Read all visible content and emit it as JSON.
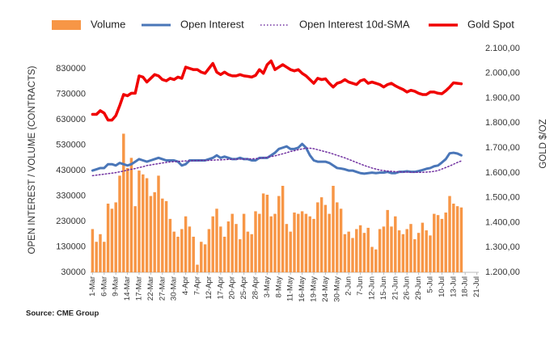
{
  "chart_data": {
    "type": "combo",
    "source": "Source: CME Group",
    "ylabel": "OPEN INTEREST / VOLUME (CONTRACTS)",
    "y2label": "GOLD $/OZ",
    "categories": [
      "1-Mar",
      null,
      null,
      "6-Mar",
      null,
      null,
      "9-Mar",
      null,
      null,
      "14-Mar",
      null,
      null,
      "17-Mar",
      null,
      null,
      "22-Mar",
      null,
      null,
      "27-Mar",
      null,
      null,
      "30-Mar",
      null,
      null,
      "4-Apr",
      null,
      null,
      "7-Apr",
      null,
      null,
      "12-Apr",
      null,
      null,
      "17-Apr",
      null,
      null,
      "20-Apr",
      null,
      null,
      "25-Apr",
      null,
      null,
      "28-Apr",
      null,
      null,
      "3-May",
      null,
      null,
      "8-May",
      null,
      null,
      "11-May",
      null,
      null,
      "16-May",
      null,
      null,
      "19-May",
      null,
      null,
      "24-May",
      null,
      null,
      "30-May",
      null,
      null,
      "2-Jun",
      null,
      null,
      "7-Jun",
      null,
      null,
      "12-Jun",
      null,
      null,
      "15-Jun",
      null,
      null,
      "21-Jun",
      null,
      null,
      "26-Jun",
      null,
      null,
      "29-Jun",
      null,
      null,
      "5-Jul",
      null,
      null,
      "10-Jul",
      null,
      null,
      "13-Jul",
      null,
      null,
      "18-Jul",
      null,
      null,
      "21-Jul"
    ],
    "ylim": [
      30000,
      910000
    ],
    "yticks": [
      30000,
      130000,
      230000,
      330000,
      430000,
      530000,
      630000,
      730000,
      830000
    ],
    "y2lim": [
      1200,
      2100
    ],
    "y2ticks": [
      {
        "value": 1200,
        "label": "1.200,00"
      },
      {
        "value": 1300,
        "label": "1.300,00"
      },
      {
        "value": 1400,
        "label": "1.400,00"
      },
      {
        "value": 1500,
        "label": "1.500,00"
      },
      {
        "value": 1600,
        "label": "1.600,00"
      },
      {
        "value": 1700,
        "label": "1.700,00"
      },
      {
        "value": 1800,
        "label": "1.800,00"
      },
      {
        "value": 1900,
        "label": "1.900,00"
      },
      {
        "value": 2000,
        "label": "2.000,00"
      },
      {
        "value": 2100,
        "label": "2.100,00"
      }
    ],
    "series": [
      {
        "name": "Volume",
        "type": "bar",
        "color": "#f79646",
        "values": [
          200000,
          150000,
          180000,
          150000,
          300000,
          280000,
          305000,
          410000,
          575000,
          440000,
          480000,
          290000,
          430000,
          415000,
          400000,
          330000,
          345000,
          410000,
          320000,
          310000,
          240000,
          190000,
          170000,
          200000,
          250000,
          210000,
          170000,
          60000,
          150000,
          140000,
          200000,
          250000,
          280000,
          210000,
          170000,
          230000,
          260000,
          220000,
          160000,
          260000,
          190000,
          180000,
          270000,
          260000,
          340000,
          335000,
          250000,
          260000,
          330000,
          370000,
          220000,
          190000,
          265000,
          260000,
          270000,
          260000,
          250000,
          240000,
          305000,
          325000,
          295000,
          260000,
          370000,
          305000,
          280000,
          180000,
          190000,
          165000,
          200000,
          215000,
          185000,
          205000,
          130000,
          120000,
          200000,
          210000,
          275000,
          210000,
          250000,
          195000,
          180000,
          200000,
          220000,
          160000,
          185000,
          225000,
          195000,
          175000,
          260000,
          255000,
          240000,
          265000,
          330000,
          300000,
          290000,
          285000,
          null,
          null,
          null,
          null
        ]
      },
      {
        "name": "Open Interest",
        "type": "line",
        "color": "#4a76b8",
        "width": 3,
        "values": [
          430000,
          435000,
          440000,
          440000,
          455000,
          455000,
          450000,
          460000,
          455000,
          450000,
          455000,
          465000,
          475000,
          470000,
          465000,
          470000,
          475000,
          480000,
          475000,
          470000,
          470000,
          470000,
          465000,
          450000,
          455000,
          470000,
          470000,
          470000,
          470000,
          470000,
          475000,
          480000,
          490000,
          480000,
          485000,
          480000,
          475000,
          475000,
          480000,
          475000,
          475000,
          470000,
          470000,
          480000,
          480000,
          480000,
          490000,
          500000,
          515000,
          520000,
          525000,
          515000,
          515000,
          520000,
          535000,
          520000,
          490000,
          470000,
          465000,
          465000,
          465000,
          460000,
          450000,
          440000,
          438000,
          435000,
          430000,
          430000,
          425000,
          420000,
          418000,
          420000,
          422000,
          420000,
          422000,
          422000,
          425000,
          420000,
          420000,
          425000,
          425000,
          427000,
          425000,
          425000,
          428000,
          432000,
          437000,
          440000,
          447000,
          450000,
          462000,
          475000,
          498000,
          500000,
          497000,
          490000,
          null,
          null,
          null,
          null
        ]
      },
      {
        "name": "Open Interest 10d-SMA",
        "type": "line",
        "style": "dotted",
        "color": "#7030a0",
        "width": 1.5,
        "values": [
          410000,
          412000,
          414000,
          416000,
          418000,
          420000,
          422000,
          425000,
          428000,
          432000,
          435000,
          438000,
          442000,
          445000,
          450000,
          452000,
          455000,
          457000,
          460000,
          462000,
          464000,
          465000,
          466000,
          467000,
          468000,
          468000,
          469000,
          469000,
          470000,
          470000,
          470000,
          471000,
          472000,
          472000,
          473000,
          474000,
          474000,
          475000,
          475000,
          475000,
          476000,
          476000,
          477000,
          478000,
          480000,
          482000,
          485000,
          488000,
          492000,
          496000,
          500000,
          505000,
          508000,
          512000,
          515000,
          518000,
          518000,
          516000,
          512000,
          508000,
          504000,
          500000,
          495000,
          490000,
          485000,
          480000,
          474000,
          468000,
          462000,
          456000,
          450000,
          445000,
          440000,
          436000,
          432000,
          430000,
          428000,
          427000,
          426000,
          425000,
          424000,
          424000,
          423000,
          423000,
          423000,
          423000,
          424000,
          425000,
          427000,
          430000,
          436000,
          442000,
          448000,
          455000,
          462000,
          468000,
          null,
          null,
          null,
          null
        ]
      },
      {
        "name": "Gold Spot",
        "type": "line",
        "axis": "y2",
        "color": "#f00000",
        "width": 3.5,
        "values": [
          1835,
          1835,
          1850,
          1840,
          1812,
          1812,
          1830,
          1870,
          1915,
          1910,
          1920,
          1920,
          1990,
          1985,
          1965,
          1980,
          1995,
          1990,
          1975,
          1970,
          1980,
          1975,
          1985,
          1980,
          2025,
          2020,
          2015,
          2015,
          2005,
          2000,
          2020,
          2040,
          2005,
          1995,
          2005,
          1995,
          1990,
          1990,
          1995,
          1990,
          1988,
          1985,
          1992,
          2015,
          2000,
          2035,
          2050,
          2015,
          2025,
          2035,
          2025,
          2015,
          2010,
          2015,
          2000,
          1990,
          1975,
          1960,
          1980,
          1975,
          1978,
          1960,
          1945,
          1960,
          1965,
          1975,
          1965,
          1960,
          1955,
          1970,
          1975,
          1960,
          1965,
          1960,
          1955,
          1945,
          1955,
          1960,
          1950,
          1942,
          1935,
          1925,
          1932,
          1928,
          1920,
          1915,
          1915,
          1925,
          1925,
          1920,
          1918,
          1930,
          1945,
          1962,
          1960,
          1958,
          null,
          null,
          null,
          null
        ]
      }
    ]
  }
}
